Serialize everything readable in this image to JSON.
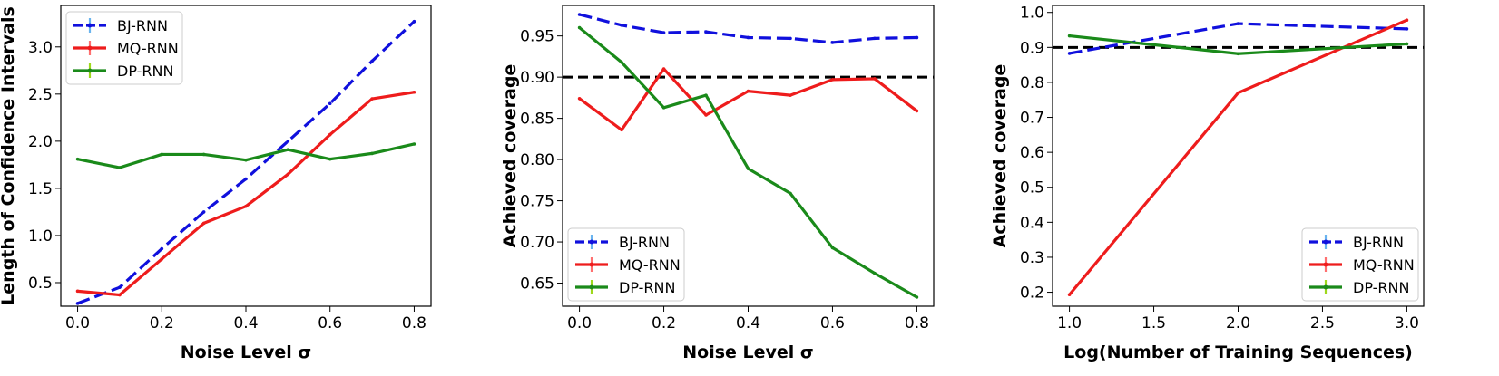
{
  "colors": {
    "BJ-RNN": "#1010dd",
    "MQ-RNN": "#ee1c1c",
    "DP-RNN": "#1a8a1a",
    "reference": "#000000",
    "errorbar_BJ": "#6ab4ee",
    "errorbar_MQ": "#ff7070",
    "errorbar_DP": "#9ed81c"
  },
  "chart_data": [
    {
      "type": "line",
      "title": "",
      "xlabel": "Noise Level σ",
      "ylabel": "Length of Confidence Intervals",
      "xlim": [
        -0.04,
        0.84
      ],
      "ylim": [
        0.25,
        3.44
      ],
      "xticks": [
        0.0,
        0.2,
        0.4,
        0.6,
        0.8
      ],
      "xtick_labels": [
        "0.0",
        "0.2",
        "0.4",
        "0.6",
        "0.8"
      ],
      "yticks": [
        0.5,
        1.0,
        1.5,
        2.0,
        2.5,
        3.0
      ],
      "ytick_labels": [
        "0.5",
        "1.0",
        "1.5",
        "2.0",
        "2.5",
        "3.0"
      ],
      "legend_position": "top-left",
      "reference_line": null,
      "series": [
        {
          "name": "BJ-RNN",
          "style": "dashed",
          "x": [
            0.0,
            0.1,
            0.2,
            0.3,
            0.4,
            0.5,
            0.6,
            0.7,
            0.8
          ],
          "y": [
            0.28,
            0.45,
            0.86,
            1.25,
            1.6,
            2.0,
            2.4,
            2.85,
            3.27
          ]
        },
        {
          "name": "MQ-RNN",
          "style": "solid",
          "x": [
            0.0,
            0.1,
            0.2,
            0.3,
            0.4,
            0.5,
            0.6,
            0.7,
            0.8
          ],
          "y": [
            0.41,
            0.37,
            0.75,
            1.13,
            1.31,
            1.65,
            2.07,
            2.45,
            2.52
          ]
        },
        {
          "name": "DP-RNN",
          "style": "solid",
          "x": [
            0.0,
            0.1,
            0.2,
            0.3,
            0.4,
            0.5,
            0.6,
            0.7,
            0.8
          ],
          "y": [
            1.81,
            1.72,
            1.86,
            1.86,
            1.8,
            1.91,
            1.81,
            1.87,
            1.97
          ]
        }
      ]
    },
    {
      "type": "line",
      "title": "",
      "xlabel": "Noise Level σ",
      "ylabel": "Achieved coverage",
      "xlim": [
        -0.04,
        0.84
      ],
      "ylim": [
        0.622,
        0.987
      ],
      "xticks": [
        0.0,
        0.2,
        0.4,
        0.6,
        0.8
      ],
      "xtick_labels": [
        "0.0",
        "0.2",
        "0.4",
        "0.6",
        "0.8"
      ],
      "yticks": [
        0.65,
        0.7,
        0.75,
        0.8,
        0.85,
        0.9,
        0.95
      ],
      "ytick_labels": [
        "0.65",
        "0.70",
        "0.75",
        "0.80",
        "0.85",
        "0.90",
        "0.95"
      ],
      "legend_position": "bottom-left",
      "reference_line": 0.9,
      "series": [
        {
          "name": "BJ-RNN",
          "style": "dashed",
          "x": [
            0.0,
            0.1,
            0.2,
            0.3,
            0.4,
            0.5,
            0.6,
            0.7,
            0.8
          ],
          "y": [
            0.976,
            0.963,
            0.954,
            0.955,
            0.948,
            0.947,
            0.942,
            0.947,
            0.948
          ]
        },
        {
          "name": "MQ-RNN",
          "style": "solid",
          "x": [
            0.0,
            0.1,
            0.2,
            0.3,
            0.4,
            0.5,
            0.6,
            0.7,
            0.8
          ],
          "y": [
            0.874,
            0.836,
            0.91,
            0.854,
            0.883,
            0.878,
            0.897,
            0.898,
            0.859
          ]
        },
        {
          "name": "DP-RNN",
          "style": "solid",
          "x": [
            0.0,
            0.1,
            0.2,
            0.3,
            0.4,
            0.5,
            0.6,
            0.7,
            0.8
          ],
          "y": [
            0.96,
            0.918,
            0.863,
            0.878,
            0.789,
            0.759,
            0.693,
            0.662,
            0.633
          ]
        }
      ]
    },
    {
      "type": "line",
      "title": "",
      "xlabel": "Log(Number of Training Sequences)",
      "ylabel": "Achieved coverage",
      "xlim": [
        0.9,
        3.1
      ],
      "ylim": [
        0.16,
        1.02
      ],
      "xticks": [
        1.0,
        1.5,
        2.0,
        2.5,
        3.0
      ],
      "xtick_labels": [
        "1.0",
        "1.5",
        "2.0",
        "2.5",
        "3.0"
      ],
      "yticks": [
        0.2,
        0.3,
        0.4,
        0.5,
        0.6,
        0.7,
        0.8,
        0.9,
        1.0
      ],
      "ytick_labels": [
        "0.2",
        "0.3",
        "0.4",
        "0.5",
        "0.6",
        "0.7",
        "0.8",
        "0.9",
        "1.0"
      ],
      "legend_position": "bottom-right",
      "reference_line": 0.9,
      "series": [
        {
          "name": "BJ-RNN",
          "style": "dashed",
          "x": [
            1.0,
            2.0,
            3.0
          ],
          "y": [
            0.883,
            0.968,
            0.953
          ]
        },
        {
          "name": "MQ-RNN",
          "style": "solid",
          "x": [
            1.0,
            2.0,
            3.0
          ],
          "y": [
            0.193,
            0.77,
            0.978
          ]
        },
        {
          "name": "DP-RNN",
          "style": "solid",
          "x": [
            1.0,
            2.0,
            3.0
          ],
          "y": [
            0.933,
            0.882,
            0.91
          ]
        }
      ]
    }
  ]
}
